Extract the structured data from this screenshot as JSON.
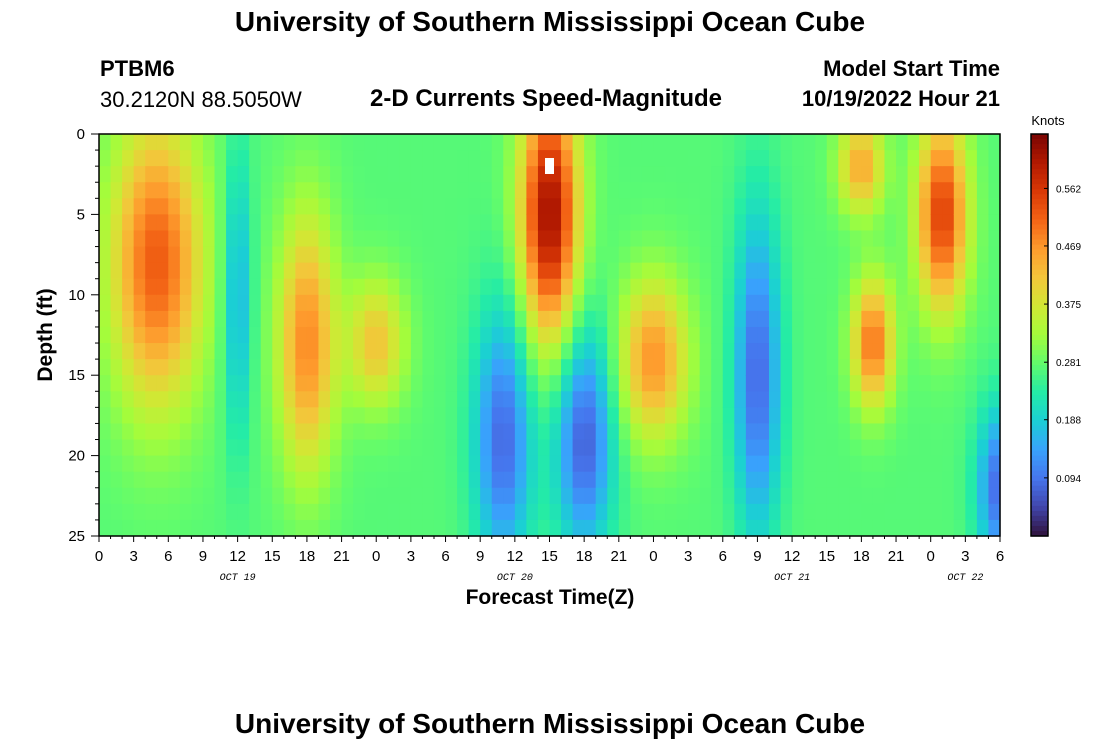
{
  "header": {
    "title": "University of Southern Mississippi Ocean Cube",
    "station": "PTBM6",
    "coordinates": "30.2120N  88.5050W",
    "plot_title": "2-D Currents Speed-Magnitude",
    "model_start_label": "Model Start Time",
    "model_start_value": "10/19/2022 Hour 21"
  },
  "footer": {
    "title": "University of Southern Mississippi Ocean Cube"
  },
  "chart_data": {
    "type": "heatmap",
    "title": "2-D Currents Speed-Magnitude",
    "xlabel": "Forecast Time(Z)",
    "ylabel": "Depth (ft)",
    "x_hours": [
      0,
      3,
      6,
      9,
      12,
      15,
      18,
      21,
      24,
      27,
      30,
      33,
      36,
      39,
      42,
      45,
      48,
      51,
      54,
      57,
      60,
      63,
      66,
      69,
      72,
      75,
      78
    ],
    "x_tick_labels": [
      "0",
      "3",
      "6",
      "9",
      "12",
      "15",
      "18",
      "21",
      "0",
      "3",
      "6",
      "9",
      "12",
      "15",
      "18",
      "21",
      "0",
      "3",
      "6",
      "9",
      "12",
      "15",
      "18",
      "21",
      "0",
      "3",
      "6"
    ],
    "date_labels": [
      {
        "label": "OCT 19",
        "hour": 12
      },
      {
        "label": "OCT 20",
        "hour": 36
      },
      {
        "label": "OCT 21",
        "hour": 60
      },
      {
        "label": "OCT 22",
        "hour": 75
      }
    ],
    "y_ticks": [
      0,
      5,
      10,
      15,
      20,
      25
    ],
    "ylim": [
      25,
      0
    ],
    "xlim": [
      0,
      78
    ],
    "colorbar": {
      "label": "Knots",
      "ticks": [
        "0.562",
        "0.469",
        "0.375",
        "0.281",
        "0.188",
        "0.094"
      ],
      "tick_values": [
        0.562,
        0.469,
        0.375,
        0.281,
        0.188,
        0.094
      ],
      "range": [
        0.0,
        0.65
      ]
    },
    "features": [
      {
        "hour": 5,
        "depth": 8,
        "speed": 0.52,
        "wh": 4,
        "wd": 9
      },
      {
        "hour": 18,
        "depth": 13,
        "speed": 0.48,
        "wh": 2.5,
        "wd": 8
      },
      {
        "hour": 24,
        "depth": 13,
        "speed": 0.42,
        "wh": 2.5,
        "wd": 4
      },
      {
        "hour": 39,
        "depth": 5,
        "speed": 0.62,
        "wh": 2.5,
        "wd": 8
      },
      {
        "hour": 48,
        "depth": 14,
        "speed": 0.47,
        "wh": 3,
        "wd": 5
      },
      {
        "hour": 57,
        "depth": 15,
        "speed": 0.08,
        "wh": 2,
        "wd": 10
      },
      {
        "hour": 42,
        "depth": 19,
        "speed": 0.07,
        "wh": 2.5,
        "wd": 7
      },
      {
        "hour": 35,
        "depth": 19,
        "speed": 0.08,
        "wh": 2.5,
        "wd": 8
      },
      {
        "hour": 67,
        "depth": 13,
        "speed": 0.5,
        "wh": 1.8,
        "wd": 4
      },
      {
        "hour": 73,
        "depth": 5,
        "speed": 0.55,
        "wh": 2.2,
        "wd": 6
      },
      {
        "hour": 12,
        "depth": 10,
        "speed": 0.15,
        "wh": 1.2,
        "wd": 9
      },
      {
        "hour": 78,
        "depth": 22,
        "speed": 0.08,
        "wh": 2,
        "wd": 5
      },
      {
        "hour": 66,
        "depth": 2,
        "speed": 0.45,
        "wh": 2,
        "wd": 3
      }
    ],
    "background_speed": 0.27
  },
  "colors": {
    "colormap": [
      "#30123b",
      "#4145ab",
      "#4675ed",
      "#39a2fc",
      "#1bcfd4",
      "#24eca6",
      "#61fc6c",
      "#a4fc3b",
      "#d1e834",
      "#f3c63a",
      "#fe9b2d",
      "#f36315",
      "#d93806",
      "#b11901",
      "#7a0402"
    ]
  }
}
